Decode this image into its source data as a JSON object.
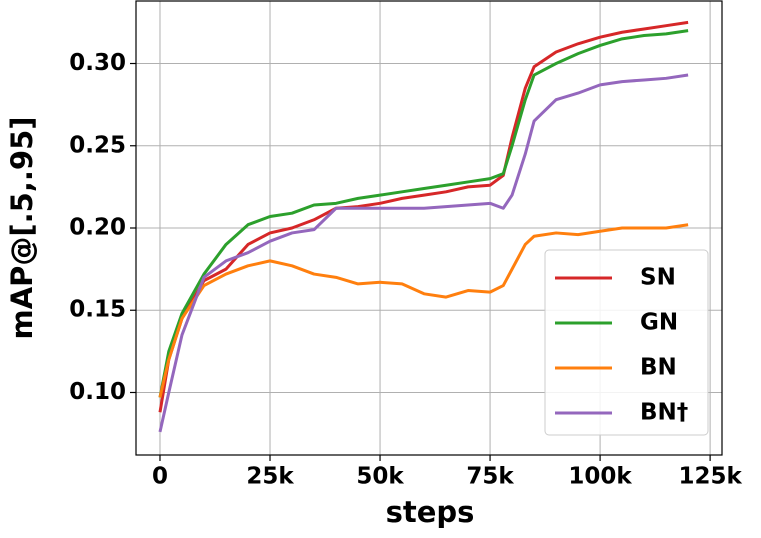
{
  "chart_data": {
    "type": "line",
    "x_label": "steps",
    "y_label": "mAP@[.5,.95]",
    "x": [
      0,
      2000,
      5000,
      10000,
      15000,
      20000,
      25000,
      30000,
      35000,
      40000,
      45000,
      50000,
      55000,
      60000,
      65000,
      70000,
      75000,
      78000,
      80000,
      83000,
      85000,
      90000,
      95000,
      100000,
      105000,
      110000,
      115000,
      120000
    ],
    "series": [
      {
        "name": "SN",
        "color": "#d62728",
        "values": [
          0.088,
          0.12,
          0.145,
          0.168,
          0.175,
          0.19,
          0.197,
          0.2,
          0.205,
          0.212,
          0.213,
          0.215,
          0.218,
          0.22,
          0.222,
          0.225,
          0.226,
          0.232,
          0.255,
          0.285,
          0.298,
          0.307,
          0.312,
          0.316,
          0.319,
          0.321,
          0.323,
          0.325
        ]
      },
      {
        "name": "GN",
        "color": "#2ca02c",
        "values": [
          0.097,
          0.125,
          0.148,
          0.172,
          0.19,
          0.202,
          0.207,
          0.209,
          0.214,
          0.215,
          0.218,
          0.22,
          0.222,
          0.224,
          0.226,
          0.228,
          0.23,
          0.233,
          0.25,
          0.278,
          0.293,
          0.3,
          0.306,
          0.311,
          0.315,
          0.317,
          0.318,
          0.32
        ]
      },
      {
        "name": "BN",
        "color": "#ff7f0e",
        "values": [
          0.097,
          0.12,
          0.145,
          0.165,
          0.172,
          0.177,
          0.18,
          0.177,
          0.172,
          0.17,
          0.166,
          0.167,
          0.166,
          0.16,
          0.158,
          0.162,
          0.161,
          0.165,
          0.175,
          0.19,
          0.195,
          0.197,
          0.196,
          0.198,
          0.2,
          0.2,
          0.2,
          0.202
        ]
      },
      {
        "name": "BN†",
        "color": "#9467bd",
        "values": [
          0.076,
          0.1,
          0.135,
          0.17,
          0.18,
          0.185,
          0.192,
          0.197,
          0.199,
          0.212,
          0.212,
          0.212,
          0.212,
          0.212,
          0.213,
          0.214,
          0.215,
          0.212,
          0.22,
          0.245,
          0.265,
          0.278,
          0.282,
          0.287,
          0.289,
          0.29,
          0.291,
          0.293
        ]
      }
    ],
    "xlim": [
      -5450,
      127700
    ],
    "ylim": [
      0.062,
      0.338
    ],
    "xticks": [
      0,
      {
        "value": 25000,
        "label": "25k"
      },
      {
        "value": 50000,
        "label": "50k"
      },
      {
        "value": 75000,
        "label": "75k"
      },
      {
        "value": 100000,
        "label": "100k"
      },
      {
        "value": 125000,
        "label": "125k"
      }
    ],
    "yticks": [
      {
        "value": 0.1,
        "label": "0.10"
      },
      0.15,
      {
        "value": 0.2,
        "label": "0.20"
      },
      0.25,
      {
        "value": 0.3,
        "label": "0.30"
      }
    ],
    "grid": true,
    "legend": "lower right"
  }
}
